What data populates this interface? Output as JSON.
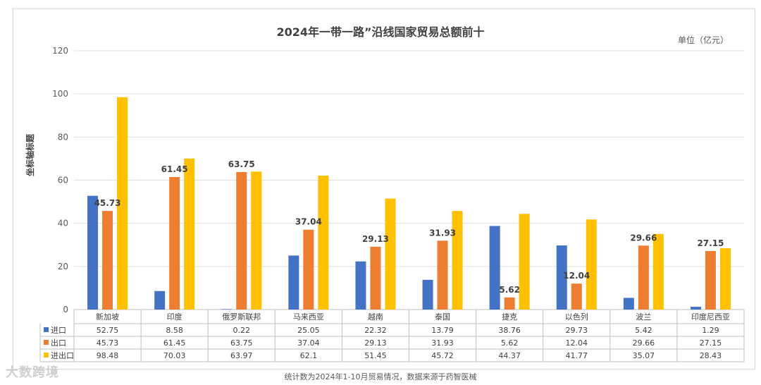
{
  "title": "2024年一带一路”沿线国家贸易总额前十",
  "unit": "单位（亿元）",
  "footnote": "统计数为2024年1-10月贸易情况，数据来源于药智医械",
  "watermark": "大数跨境",
  "chart_data": {
    "type": "bar",
    "title": "2024年一带一路”沿线国家贸易总额前十",
    "ylabel": "坐标轴标题",
    "ylim": [
      0,
      120
    ],
    "yticks": [
      0,
      20,
      40,
      60,
      80,
      100,
      120
    ],
    "grid": true,
    "categories": [
      "新加坡",
      "印度",
      "俄罗斯联邦",
      "马来西亚",
      "越南",
      "泰国",
      "捷克",
      "以色列",
      "波兰",
      "印度尼西亚"
    ],
    "series": [
      {
        "name": "进口",
        "color": "#4472c4",
        "values": [
          52.75,
          8.58,
          0.22,
          25.05,
          22.32,
          13.79,
          38.76,
          29.73,
          5.42,
          1.29
        ]
      },
      {
        "name": "出口",
        "color": "#ed7d31",
        "values": [
          45.73,
          61.45,
          63.75,
          37.04,
          29.13,
          31.93,
          5.62,
          12.04,
          29.66,
          27.15
        ]
      },
      {
        "name": "进出口",
        "color": "#ffc000",
        "values": [
          98.48,
          70.03,
          63.97,
          62.1,
          51.45,
          45.72,
          44.37,
          41.77,
          35.07,
          28.43
        ]
      }
    ],
    "data_table": {
      "rows": [
        {
          "name": "进口",
          "cells": [
            "52.75",
            "8.58",
            "0.22",
            "25.05",
            "22.32",
            "13.79",
            "38.76",
            "29.73",
            "5.42",
            "1.29"
          ]
        },
        {
          "name": "出口",
          "cells": [
            "45.73",
            "61.45",
            "63.75",
            "37.04",
            "29.13",
            "31.93",
            "5.62",
            "12.04",
            "29.66",
            "27.15"
          ]
        },
        {
          "name": "进出口",
          "cells": [
            "98.48",
            "70.03",
            "63.97",
            "62.1",
            "51.45",
            "45.72",
            "44.37",
            "41.77",
            "35.07",
            "28.43"
          ]
        }
      ]
    },
    "data_labels_series": "出口",
    "data_labels": [
      "45.73",
      "61.45",
      "63.75",
      "37.04",
      "29.13",
      "31.93",
      "5.62",
      "12.04",
      "29.66",
      "27.15"
    ]
  }
}
